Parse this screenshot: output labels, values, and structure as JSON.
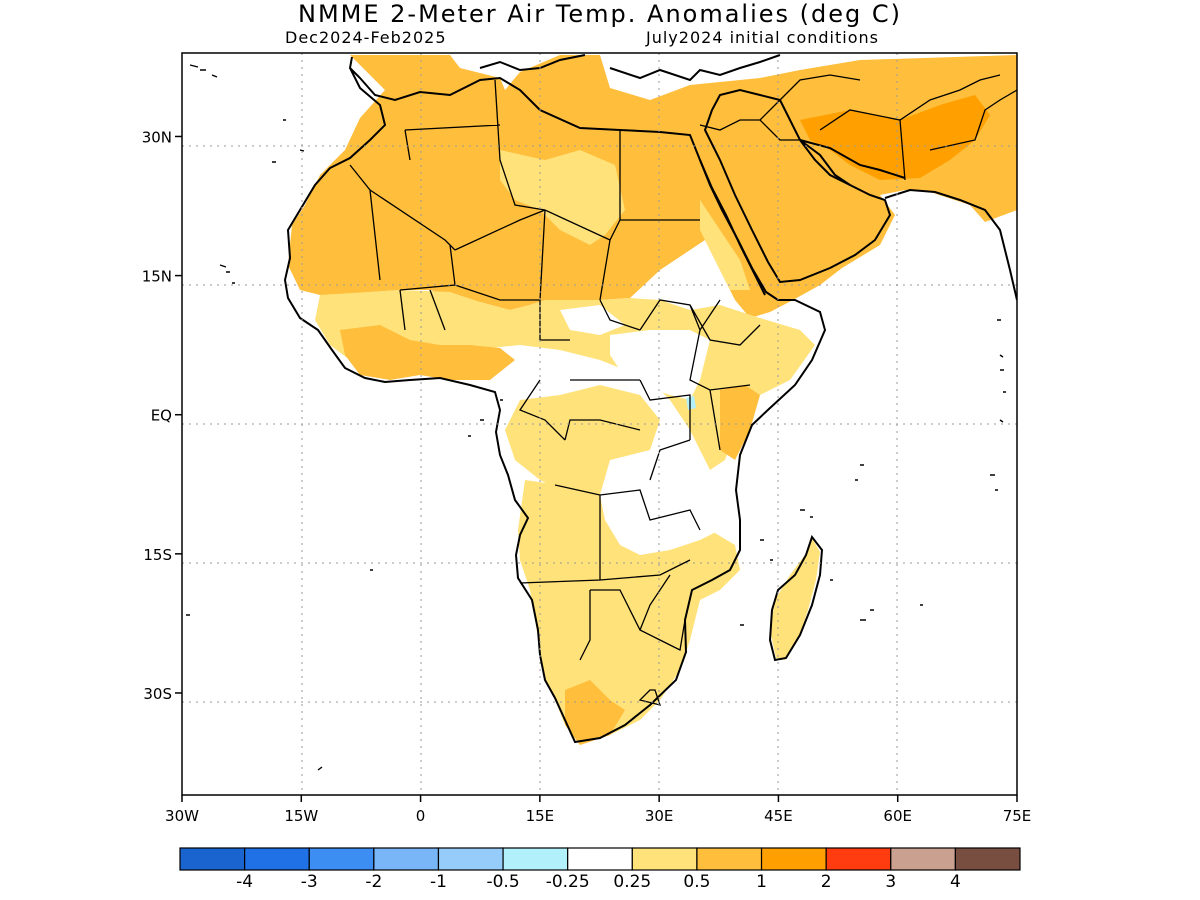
{
  "header": {
    "title": "NMME 2-Meter Air Temp. Anomalies (deg C)",
    "period": "Dec2024-Feb2025",
    "initial_conditions": "July2024 initial conditions"
  },
  "map": {
    "lon_range": [
      -30,
      75
    ],
    "lat_range": [
      -41,
      39
    ],
    "x_ticks": [
      {
        "lon": -30,
        "label": "30W"
      },
      {
        "lon": -15,
        "label": "15W"
      },
      {
        "lon": 0,
        "label": "0"
      },
      {
        "lon": 15,
        "label": "15E"
      },
      {
        "lon": 30,
        "label": "30E"
      },
      {
        "lon": 45,
        "label": "45E"
      },
      {
        "lon": 60,
        "label": "60E"
      },
      {
        "lon": 75,
        "label": "75E"
      }
    ],
    "y_ticks": [
      {
        "lat": 30,
        "label": "30N"
      },
      {
        "lat": 15,
        "label": "15N"
      },
      {
        "lat": 0,
        "label": "EQ"
      },
      {
        "lat": -15,
        "label": "15S"
      },
      {
        "lat": -30,
        "label": "30S"
      }
    ],
    "grid": "dotted"
  },
  "colorbar": {
    "colors": [
      "#1a64d0",
      "#2070e6",
      "#3c8ef2",
      "#78b6f8",
      "#96ccf9",
      "#b2f0fb",
      "#ffffff",
      "#ffe27a",
      "#ffbe3c",
      "#ffa000",
      "#ff3c10",
      "#caa190",
      "#784e40"
    ],
    "labels": [
      "-4",
      "-3",
      "-2",
      "-1",
      "-0.5",
      "-0.25",
      "0.25",
      "0.5",
      "1",
      "2",
      "3",
      "4"
    ]
  },
  "anomaly_colors": {
    "pale": "#ffe27a",
    "light_orange": "#ffbe3c",
    "orange": "#ffa000",
    "white": "#ffffff",
    "light_blue": "#b2f0fb"
  }
}
